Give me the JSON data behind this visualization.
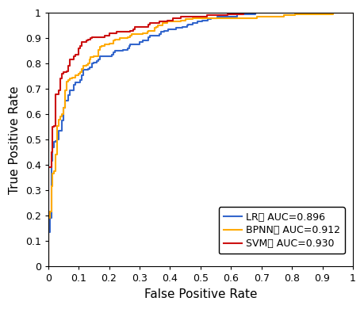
{
  "title": "",
  "xlabel": "False Positive Rate",
  "ylabel": "True Positive Rate",
  "xlim": [
    0,
    1
  ],
  "ylim": [
    0,
    1
  ],
  "xticks": [
    0,
    0.1,
    0.2,
    0.3,
    0.4,
    0.5,
    0.6,
    0.7,
    0.8,
    0.9,
    1.0
  ],
  "yticks": [
    0,
    0.1,
    0.2,
    0.3,
    0.4,
    0.5,
    0.6,
    0.7,
    0.8,
    0.9,
    1.0
  ],
  "legend_labels": [
    "LR： AUC=0.896",
    "BPNN： AUC=0.912",
    "SVM： AUC=0.930"
  ],
  "colors": [
    "#3366cc",
    "#ffaa00",
    "#cc1111"
  ],
  "linewidths": [
    1.5,
    1.5,
    1.5
  ],
  "legend_fontsize": 9,
  "axis_fontsize": 11,
  "tick_fontsize": 9,
  "auc_lr": 0.896,
  "auc_bpnn": 0.912,
  "auc_svm": 0.93
}
